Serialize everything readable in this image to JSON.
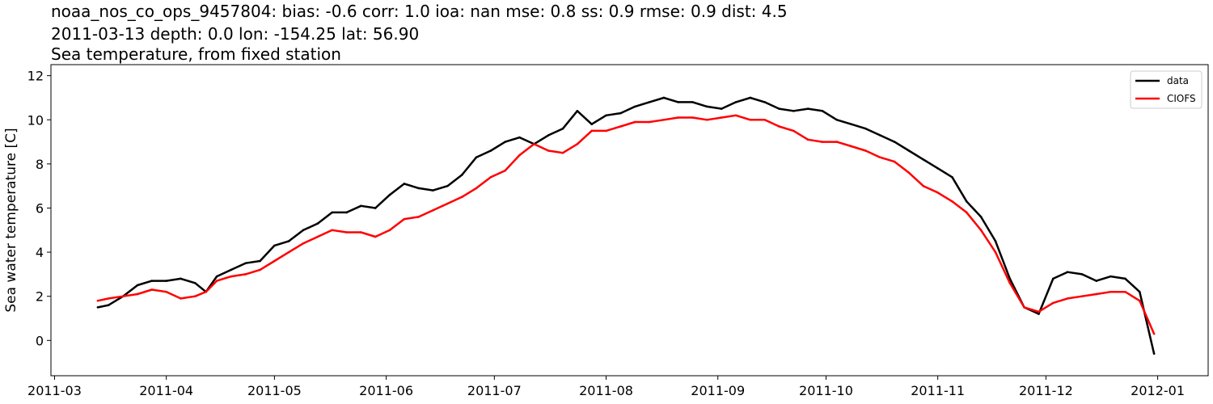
{
  "title_lines": [
    "noaa_nos_co_ops_9457804: bias: -0.6  corr: 1.0  ioa: nan  mse: 0.8  ss: 0.9  rmse: 0.9  dist: 4.5",
    "2011-03-13 depth: 0.0 lon: -154.25 lat: 56.90",
    "Sea temperature, from fixed station"
  ],
  "chart_data": {
    "type": "line",
    "title": "noaa_nos_co_ops_9457804: bias: -0.6  corr: 1.0  ioa: nan  mse: 0.8  ss: 0.9  rmse: 0.9  dist: 4.5 / 2011-03-13 depth: 0.0 lon: -154.25 lat: 56.90 / Sea temperature, from fixed station",
    "xlabel": "",
    "ylabel": "Sea water temperature [C]",
    "xlim": [
      "2011-02-28",
      "2012-01-15"
    ],
    "ylim": [
      -1.6,
      12.5
    ],
    "x_ticks": [
      "2011-03",
      "2011-04",
      "2011-05",
      "2011-06",
      "2011-07",
      "2011-08",
      "2011-09",
      "2011-10",
      "2011-11",
      "2011-12",
      "2012-01"
    ],
    "y_ticks": [
      0,
      2,
      4,
      6,
      8,
      10,
      12
    ],
    "grid": false,
    "legend_position": "top-right",
    "series": [
      {
        "name": "data",
        "color": "#000000",
        "x": [
          "2011-03-13",
          "2011-03-16",
          "2011-03-20",
          "2011-03-24",
          "2011-03-28",
          "2011-04-01",
          "2011-04-05",
          "2011-04-09",
          "2011-04-12",
          "2011-04-15",
          "2011-04-19",
          "2011-04-23",
          "2011-04-27",
          "2011-05-01",
          "2011-05-05",
          "2011-05-09",
          "2011-05-13",
          "2011-05-17",
          "2011-05-21",
          "2011-05-25",
          "2011-05-29",
          "2011-06-02",
          "2011-06-06",
          "2011-06-10",
          "2011-06-14",
          "2011-06-18",
          "2011-06-22",
          "2011-06-26",
          "2011-06-30",
          "2011-07-04",
          "2011-07-08",
          "2011-07-12",
          "2011-07-16",
          "2011-07-20",
          "2011-07-24",
          "2011-07-28",
          "2011-08-01",
          "2011-08-05",
          "2011-08-09",
          "2011-08-13",
          "2011-08-17",
          "2011-08-21",
          "2011-08-25",
          "2011-08-29",
          "2011-09-02",
          "2011-09-06",
          "2011-09-10",
          "2011-09-14",
          "2011-09-18",
          "2011-09-22",
          "2011-09-26",
          "2011-09-30",
          "2011-10-04",
          "2011-10-08",
          "2011-10-12",
          "2011-10-16",
          "2011-10-20",
          "2011-10-24",
          "2011-10-28",
          "2011-11-01",
          "2011-11-05",
          "2011-11-09",
          "2011-11-13",
          "2011-11-17",
          "2011-11-21",
          "2011-11-25",
          "2011-11-29",
          "2011-12-03",
          "2011-12-07",
          "2011-12-11",
          "2011-12-15",
          "2011-12-19",
          "2011-12-23",
          "2011-12-27",
          "2011-12-31"
        ],
        "values": [
          1.5,
          1.6,
          2.0,
          2.5,
          2.7,
          2.7,
          2.8,
          2.6,
          2.2,
          2.9,
          3.2,
          3.5,
          3.6,
          4.3,
          4.5,
          5.0,
          5.3,
          5.8,
          5.8,
          6.1,
          6.0,
          6.6,
          7.1,
          6.9,
          6.8,
          7.0,
          7.5,
          8.3,
          8.6,
          9.0,
          9.2,
          8.9,
          9.3,
          9.6,
          10.4,
          9.8,
          10.2,
          10.3,
          10.6,
          10.8,
          11.0,
          10.8,
          10.8,
          10.6,
          10.5,
          10.8,
          11.0,
          10.8,
          10.5,
          10.4,
          10.5,
          10.4,
          10.0,
          9.8,
          9.6,
          9.3,
          9.0,
          8.6,
          8.2,
          7.8,
          7.4,
          6.3,
          5.6,
          4.5,
          2.8,
          1.5,
          1.2,
          2.8,
          3.1,
          3.0,
          2.7,
          2.9,
          2.8,
          2.2,
          -0.6
        ]
      },
      {
        "name": "CIOFS",
        "color": "#ff0000",
        "x": [
          "2011-03-13",
          "2011-03-16",
          "2011-03-20",
          "2011-03-24",
          "2011-03-28",
          "2011-04-01",
          "2011-04-05",
          "2011-04-09",
          "2011-04-12",
          "2011-04-15",
          "2011-04-19",
          "2011-04-23",
          "2011-04-27",
          "2011-05-01",
          "2011-05-05",
          "2011-05-09",
          "2011-05-13",
          "2011-05-17",
          "2011-05-21",
          "2011-05-25",
          "2011-05-29",
          "2011-06-02",
          "2011-06-06",
          "2011-06-10",
          "2011-06-14",
          "2011-06-18",
          "2011-06-22",
          "2011-06-26",
          "2011-06-30",
          "2011-07-04",
          "2011-07-08",
          "2011-07-12",
          "2011-07-16",
          "2011-07-20",
          "2011-07-24",
          "2011-07-28",
          "2011-08-01",
          "2011-08-05",
          "2011-08-09",
          "2011-08-13",
          "2011-08-17",
          "2011-08-21",
          "2011-08-25",
          "2011-08-29",
          "2011-09-02",
          "2011-09-06",
          "2011-09-10",
          "2011-09-14",
          "2011-09-18",
          "2011-09-22",
          "2011-09-26",
          "2011-09-30",
          "2011-10-04",
          "2011-10-08",
          "2011-10-12",
          "2011-10-16",
          "2011-10-20",
          "2011-10-24",
          "2011-10-28",
          "2011-11-01",
          "2011-11-05",
          "2011-11-09",
          "2011-11-13",
          "2011-11-17",
          "2011-11-21",
          "2011-11-25",
          "2011-11-29",
          "2011-12-03",
          "2011-12-07",
          "2011-12-11",
          "2011-12-15",
          "2011-12-19",
          "2011-12-23",
          "2011-12-27",
          "2011-12-31"
        ],
        "values": [
          1.8,
          1.9,
          2.0,
          2.1,
          2.3,
          2.2,
          1.9,
          2.0,
          2.2,
          2.7,
          2.9,
          3.0,
          3.2,
          3.6,
          4.0,
          4.4,
          4.7,
          5.0,
          4.9,
          4.9,
          4.7,
          5.0,
          5.5,
          5.6,
          5.9,
          6.2,
          6.5,
          6.9,
          7.4,
          7.7,
          8.4,
          8.9,
          8.6,
          8.5,
          8.9,
          9.5,
          9.5,
          9.7,
          9.9,
          9.9,
          10.0,
          10.1,
          10.1,
          10.0,
          10.1,
          10.2,
          10.0,
          10.0,
          9.7,
          9.5,
          9.1,
          9.0,
          9.0,
          8.8,
          8.6,
          8.3,
          8.1,
          7.6,
          7.0,
          6.7,
          6.3,
          5.8,
          5.0,
          4.0,
          2.6,
          1.5,
          1.3,
          1.7,
          1.9,
          2.0,
          2.1,
          2.2,
          2.2,
          1.8,
          0.3
        ]
      }
    ]
  }
}
